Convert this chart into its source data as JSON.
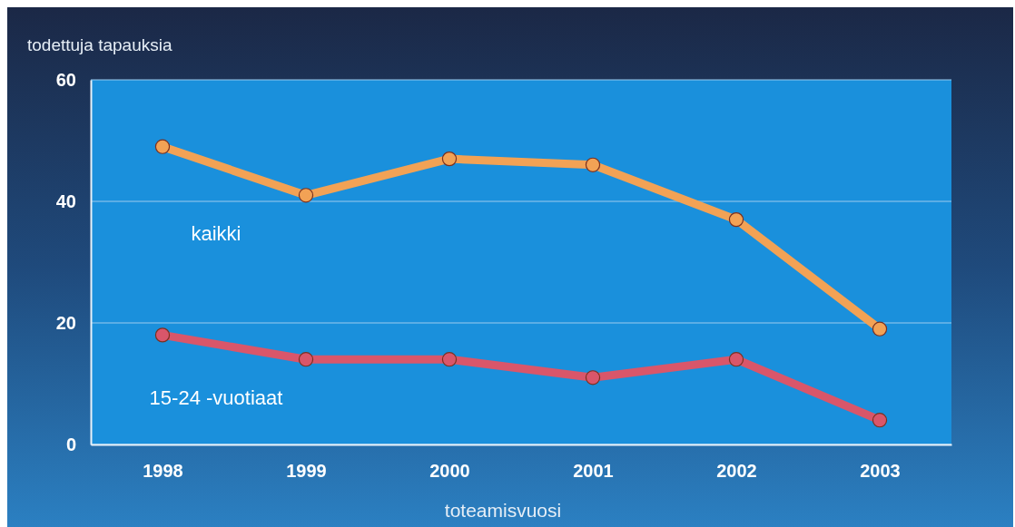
{
  "chart_data": {
    "type": "line",
    "ylabel": "todettuja tapauksia",
    "xlabel": "toteamisvuosi",
    "categories": [
      "1998",
      "1999",
      "2000",
      "2001",
      "2002",
      "2003"
    ],
    "series": [
      {
        "name": "kaikki",
        "color": "#f2a255",
        "values": [
          49,
          41,
          47,
          46,
          37,
          19
        ]
      },
      {
        "name": "15-24 -vuotiaat",
        "color": "#d9566a",
        "values": [
          18,
          14,
          14,
          11,
          14,
          4
        ]
      }
    ],
    "ylim": [
      0,
      60
    ],
    "yticks": [
      0,
      20,
      40,
      60
    ],
    "grid": "y",
    "marker": "circle",
    "line_style": "solid",
    "legend": false
  }
}
